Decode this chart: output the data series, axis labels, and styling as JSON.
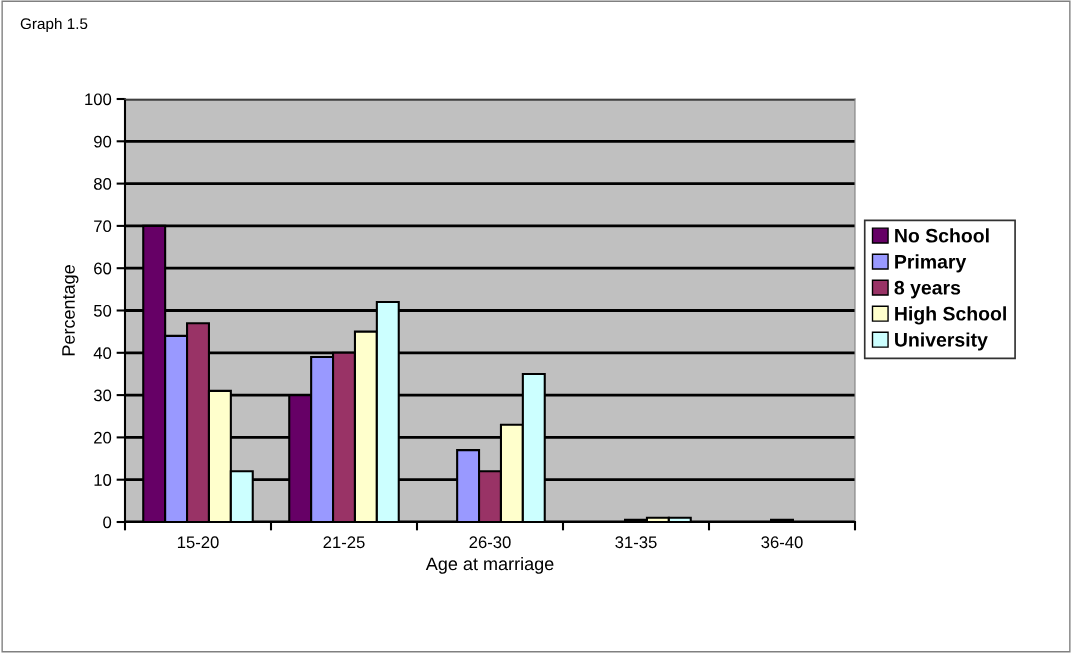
{
  "chart_data": {
    "type": "bar",
    "title": "Graph 1.5",
    "xlabel": "Age at marriage",
    "ylabel": "Percentage",
    "categories": [
      "15-20",
      "21-25",
      "26-30",
      "31-35",
      "36-40"
    ],
    "series": [
      {
        "name": "No School",
        "color": "#660066",
        "values": [
          70,
          30,
          0,
          0,
          0
        ]
      },
      {
        "name": "Primary",
        "color": "#9999ff",
        "values": [
          44,
          39,
          17,
          0,
          0
        ]
      },
      {
        "name": "8 years",
        "color": "#993366",
        "values": [
          47,
          40,
          12,
          0.5,
          0.5
        ]
      },
      {
        "name": "High School",
        "color": "#ffffcc",
        "values": [
          31,
          45,
          23,
          1,
          0
        ]
      },
      {
        "name": "University",
        "color": "#ccffff",
        "values": [
          12,
          52,
          35,
          1,
          0
        ]
      }
    ],
    "ylim": [
      0,
      100
    ],
    "yticks": [
      0,
      10,
      20,
      30,
      40,
      50,
      60,
      70,
      80,
      90,
      100
    ],
    "grid": "y",
    "legend": "right"
  }
}
